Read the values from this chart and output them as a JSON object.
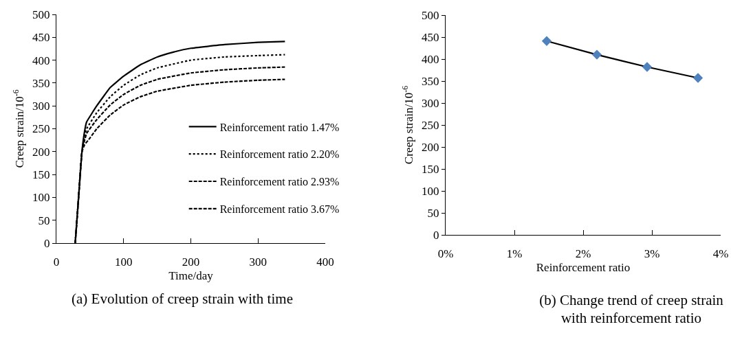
{
  "chart_data": [
    {
      "type": "line",
      "xlabel": "Time/day",
      "ylabel": "Creep strain/10$^{-6}$",
      "annotations": [
        "(a) Evolution of creep strain with time"
      ],
      "xlim": [
        0,
        400
      ],
      "xticks": [
        0,
        100,
        200,
        300,
        400
      ],
      "ylim": [
        0,
        500
      ],
      "yticks": [
        0,
        50,
        100,
        150,
        200,
        250,
        300,
        350,
        400,
        450,
        500
      ],
      "grid": false,
      "legend": "right",
      "marker": "none",
      "series": [
        {
          "name": "Reinforcement ratio 1.47%",
          "color": "#000000",
          "line_style": "solid",
          "x": [
            28,
            33,
            38,
            42,
            45,
            60,
            80,
            100,
            125,
            150,
            175,
            200,
            250,
            300,
            340
          ],
          "values": [
            0,
            100,
            200,
            245,
            265,
            300,
            340,
            365,
            390,
            407,
            418,
            426,
            434,
            439,
            441
          ]
        },
        {
          "name": "Reinforcement ratio 2.20%",
          "color": "#000000",
          "line_style": "dotted",
          "x": [
            28,
            33,
            38,
            42,
            45,
            60,
            80,
            100,
            125,
            150,
            200,
            250,
            300,
            340
          ],
          "values": [
            0,
            100,
            200,
            235,
            250,
            285,
            320,
            345,
            368,
            383,
            400,
            407,
            410,
            412
          ]
        },
        {
          "name": "Reinforcement ratio 2.93%",
          "color": "#000000",
          "line_style": "dashed",
          "x": [
            28,
            33,
            38,
            42,
            45,
            60,
            80,
            100,
            125,
            150,
            200,
            250,
            300,
            340
          ],
          "values": [
            0,
            100,
            200,
            225,
            240,
            270,
            302,
            325,
            345,
            358,
            372,
            379,
            383,
            385
          ]
        },
        {
          "name": "Reinforcement ratio 3.67%",
          "color": "#000000",
          "line_style": "dashed",
          "x": [
            28,
            33,
            38,
            42,
            50,
            60,
            80,
            100,
            125,
            150,
            200,
            250,
            300,
            340
          ],
          "values": [
            0,
            100,
            200,
            215,
            230,
            250,
            280,
            302,
            320,
            332,
            345,
            352,
            356,
            358
          ]
        }
      ]
    },
    {
      "type": "line",
      "xlabel": "Reinforcement ratio",
      "ylabel": "Creep strain/10$^{-6}$",
      "annotations": [
        "(b) Change trend of creep strain with reinforcement ratio"
      ],
      "xlim": [
        0,
        4
      ],
      "xticks": [
        {
          "value": 0,
          "label": "0%"
        },
        {
          "value": 1,
          "label": "1%"
        },
        {
          "value": 2,
          "label": "2%"
        },
        {
          "value": 3,
          "label": "3%"
        },
        {
          "value": 4,
          "label": "4%"
        }
      ],
      "ylim": [
        0,
        500
      ],
      "yticks": [
        0,
        50,
        100,
        150,
        200,
        250,
        300,
        350,
        400,
        450,
        500
      ],
      "grid": false,
      "legend": false,
      "marker": "diamond",
      "series": [
        {
          "color": "#000000",
          "colors": [
            "#4f81bd",
            "#4f81bd",
            "#4f81bd",
            "#4f81bd"
          ],
          "line_style": "solid",
          "x": [
            1.47,
            2.2,
            2.93,
            3.67
          ],
          "values": [
            441,
            410,
            382,
            357
          ]
        }
      ]
    }
  ]
}
